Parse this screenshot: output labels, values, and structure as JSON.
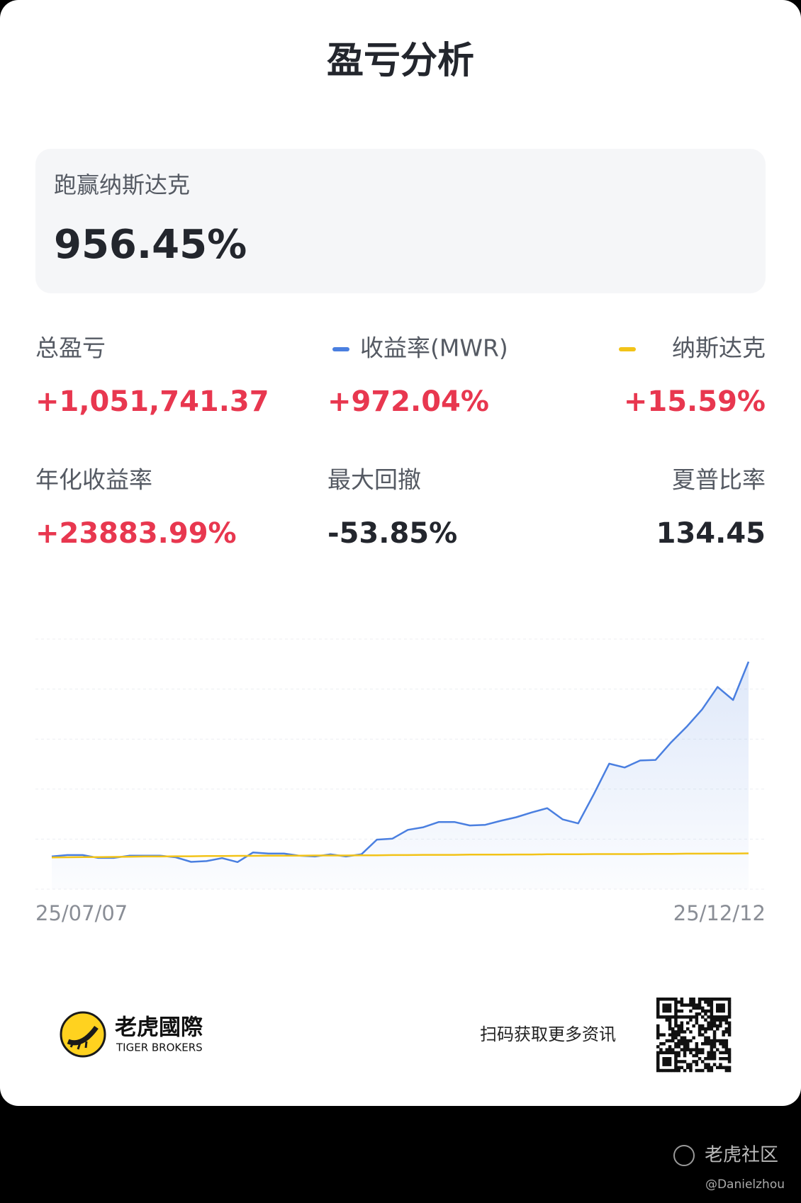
{
  "header": {
    "title": "盈亏分析"
  },
  "banner": {
    "label": "跑赢纳斯达克",
    "value": "956.45%"
  },
  "stats": {
    "row1": [
      {
        "label": "总盈亏",
        "value": "+1,051,741.37"
      },
      {
        "value": "+972.04%"
      },
      {
        "value": "+15.59%"
      }
    ],
    "row2": [
      {
        "label": "年化收益率",
        "value": "+23883.99%"
      },
      {
        "label": "最大回撤",
        "value": "-53.85%"
      },
      {
        "label": "夏普比率",
        "value": "134.45"
      }
    ]
  },
  "chart": {
    "type": "line",
    "x_start": "25/07/07",
    "x_end": "25/12/12",
    "ylim": [
      -163,
      1085
    ],
    "series": [
      {
        "name": "收益率(MWR)",
        "color": "#4a7fe0",
        "values": [
          0,
          7,
          7,
          -7,
          -7,
          4,
          4,
          4,
          -4,
          -27,
          -23,
          -8,
          -28,
          20,
          15,
          15,
          4,
          0,
          11,
          0,
          11,
          84,
          89,
          133,
          146,
          172,
          172,
          155,
          158,
          178,
          196,
          220,
          241,
          185,
          165,
          310,
          463,
          444,
          479,
          482,
          570,
          647,
          734,
          846,
          781,
          972.04
        ]
      },
      {
        "name": "纳斯达克",
        "color": "#f2c318",
        "values": [
          -5,
          -4,
          -3,
          -3,
          -2,
          -1,
          0,
          0,
          1,
          1,
          2,
          2,
          3,
          3,
          4,
          4,
          4,
          5,
          5,
          5,
          6,
          6,
          7,
          7,
          8,
          8,
          8,
          9,
          9,
          9,
          10,
          10,
          11,
          11,
          11,
          12,
          12,
          12,
          12,
          13,
          13,
          14,
          14,
          15,
          15,
          15.59
        ]
      }
    ]
  },
  "footer": {
    "brand": "老虎國際",
    "brand_en": "TIGER BROKERS",
    "cta": "扫码获取更多资讯"
  },
  "watermark": {
    "site": "老虎社区",
    "user": "@Danielzhou"
  }
}
